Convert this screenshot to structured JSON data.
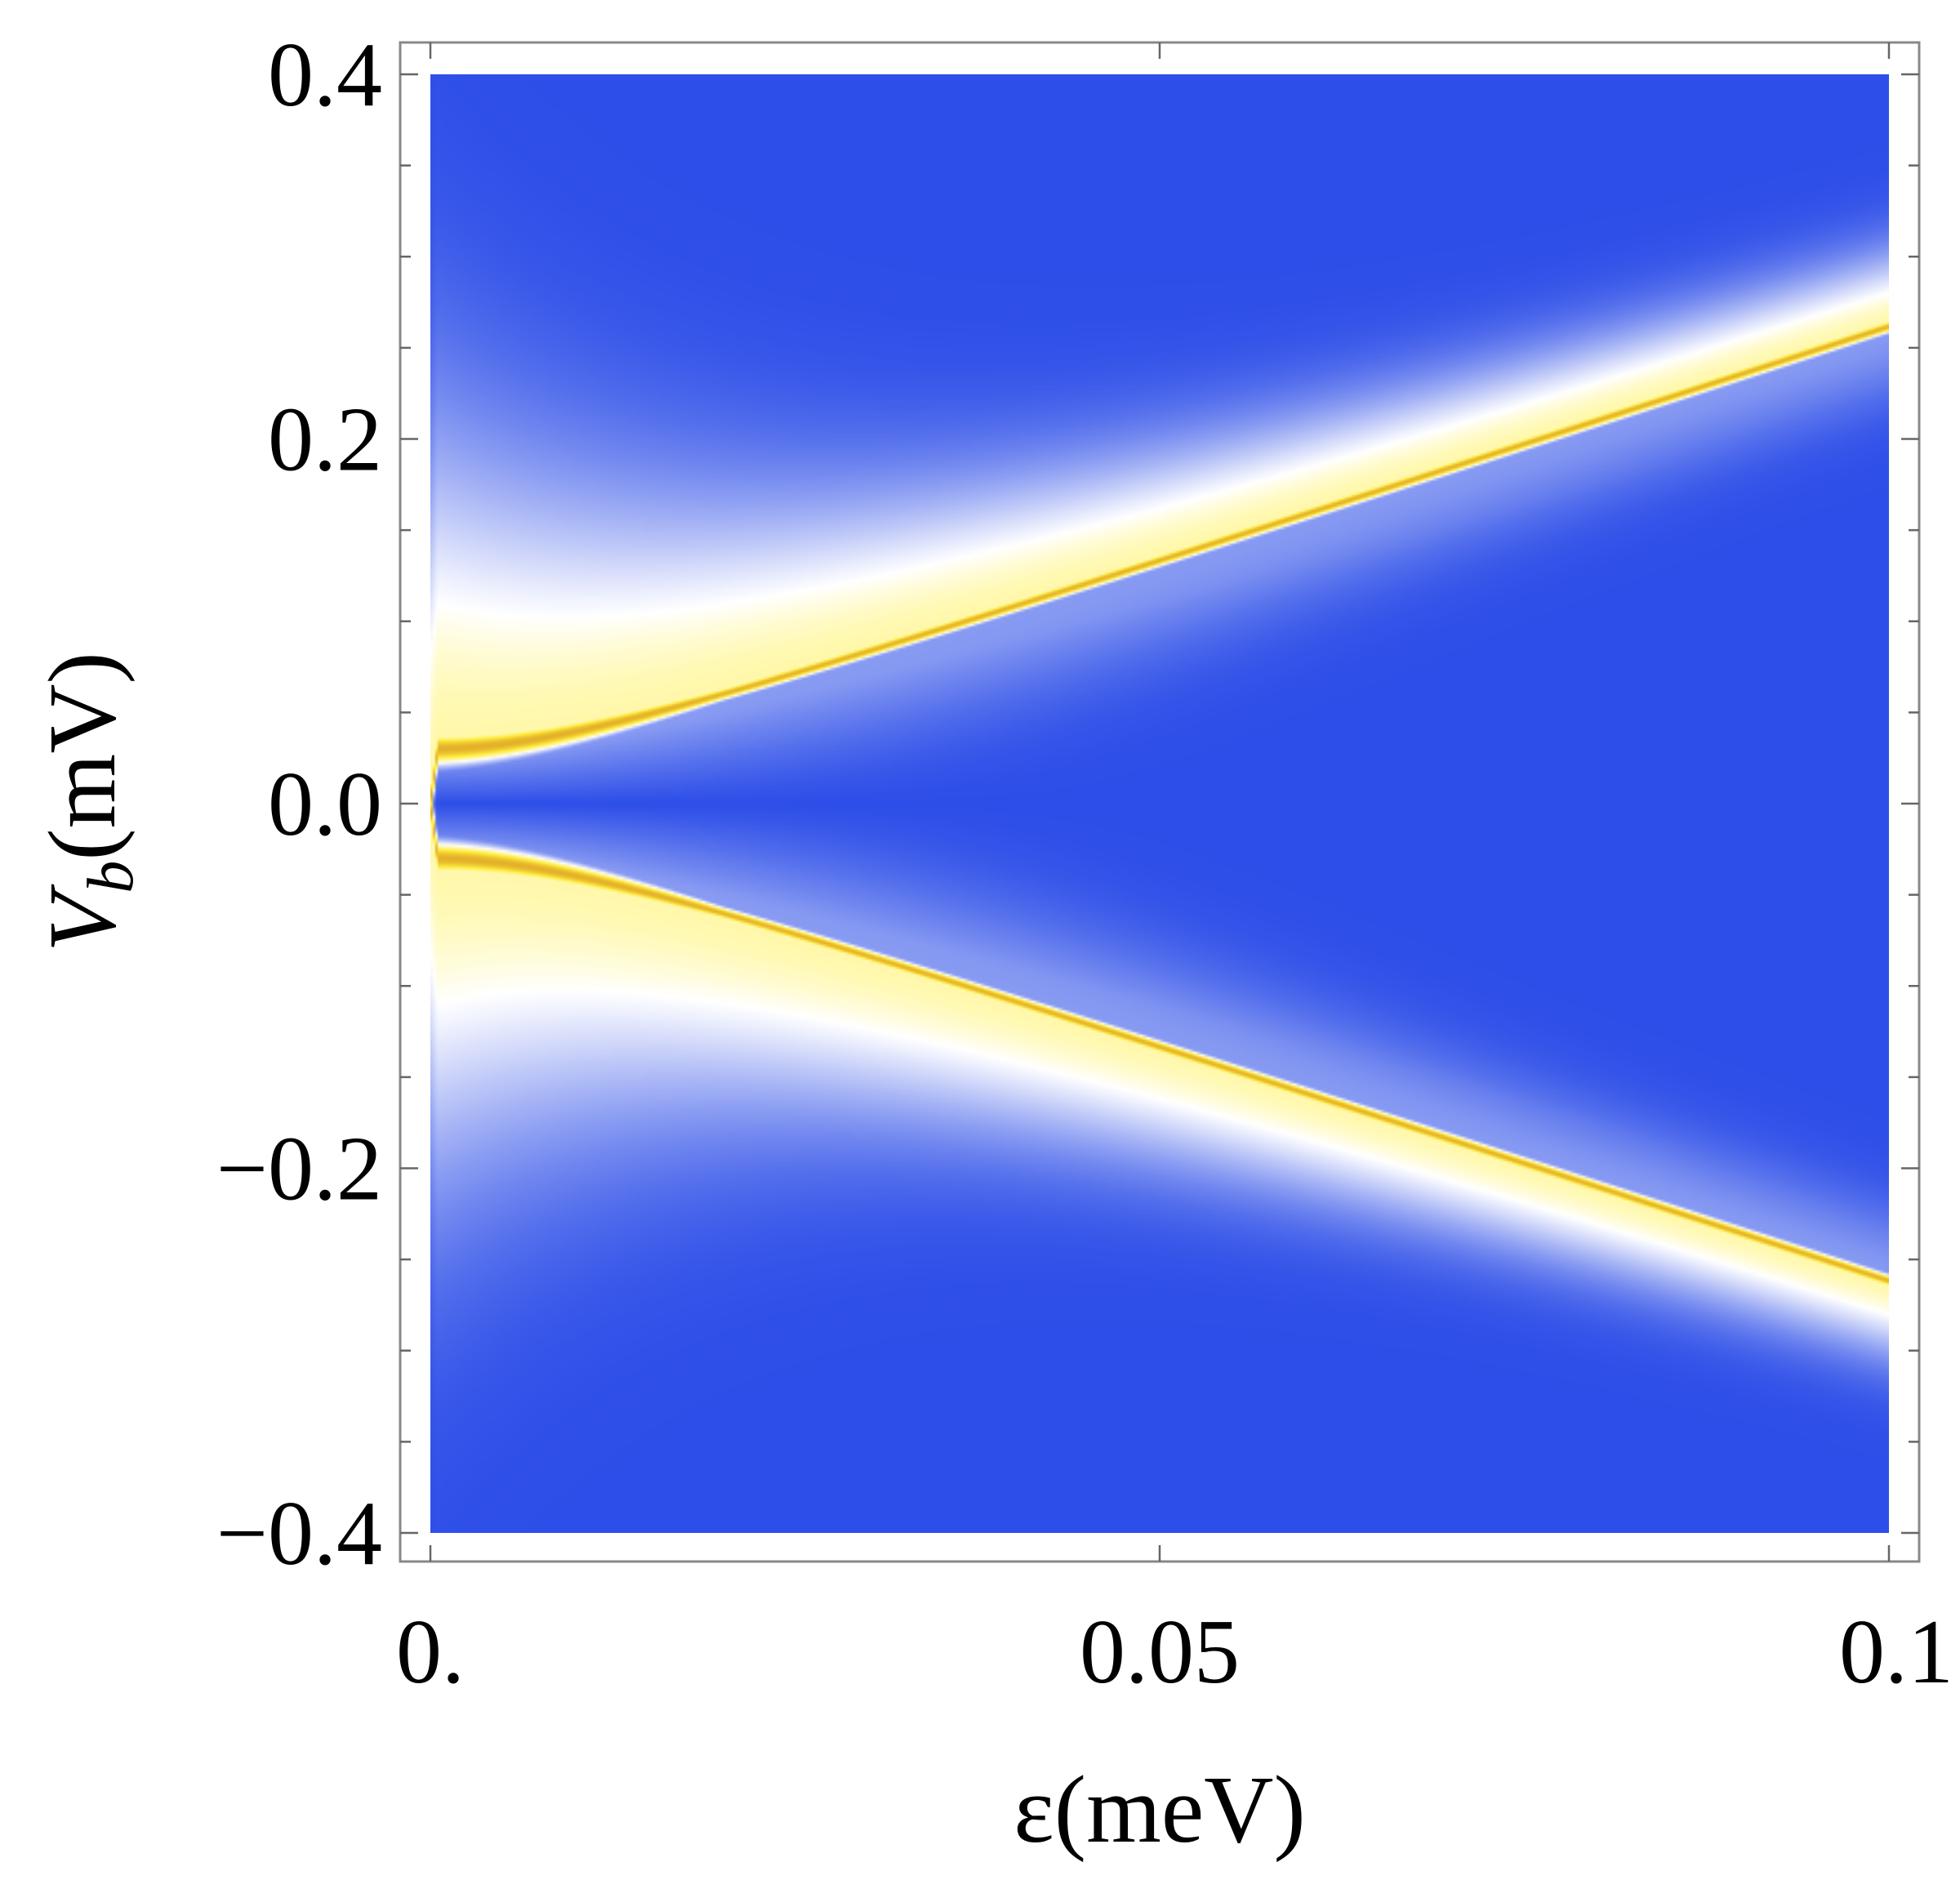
{
  "chart_data": {
    "type": "heatmap",
    "title": "",
    "xlabel": "ε(meV)",
    "ylabel_main": "V",
    "ylabel_sub": "b",
    "ylabel_unit": "(mV)",
    "xlim": [
      0,
      0.1
    ],
    "ylim": [
      -0.4,
      0.4
    ],
    "x_ticks": [
      {
        "value": 0,
        "label": "0."
      },
      {
        "value": 0.05,
        "label": "0.05"
      },
      {
        "value": 0.1,
        "label": "0.1"
      }
    ],
    "y_ticks": [
      {
        "value": 0.4,
        "label": "0.4"
      },
      {
        "value": 0.2,
        "label": "0.2"
      },
      {
        "value": 0.0,
        "label": "0.0"
      },
      {
        "value": -0.2,
        "label": "−0.2"
      },
      {
        "value": -0.4,
        "label": "−0.4"
      }
    ],
    "x_minor_ticks": [
      0,
      0.05,
      0.1
    ],
    "y_minor_step": 0.05,
    "colormap": [
      "#2d4ee8",
      "#ffffff",
      "#ffef3a",
      "#e4b02a"
    ],
    "ridges": {
      "description_free": true,
      "upper": {
        "x": [
          0,
          0.02,
          0.05,
          0.1
        ],
        "y": [
          0.005,
          0.07,
          0.135,
          0.26
        ]
      },
      "lower": {
        "x": [
          0,
          0.02,
          0.05,
          0.1
        ],
        "y": [
          -0.005,
          -0.07,
          -0.135,
          -0.26
        ]
      }
    },
    "grid": false
  }
}
